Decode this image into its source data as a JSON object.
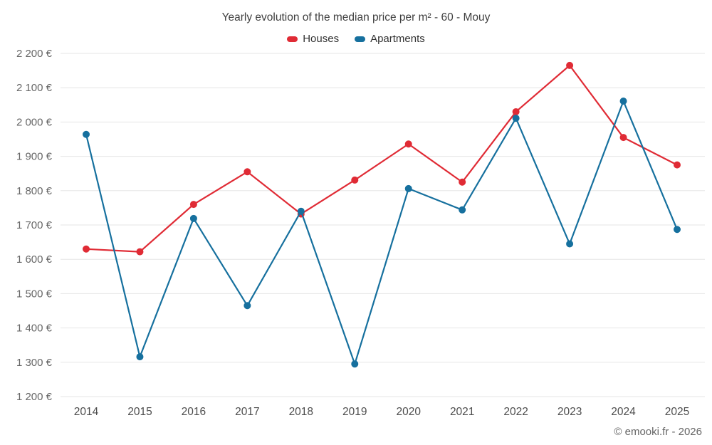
{
  "title": "Yearly evolution of the median price per m² - 60 - Mouy",
  "legend": {
    "houses": "Houses",
    "apartments": "Apartments"
  },
  "footer": "© emooki.fr - 2026",
  "colors": {
    "houses": "#e02b35",
    "apartments": "#16709e",
    "grid": "#e6e6e6",
    "axis_label": "#666666",
    "x_label": "#4d4d4d"
  },
  "chart_data": {
    "type": "line",
    "categories": [
      "2014",
      "2015",
      "2016",
      "2017",
      "2018",
      "2019",
      "2020",
      "2021",
      "2022",
      "2023",
      "2024",
      "2025"
    ],
    "series": [
      {
        "name": "Houses",
        "color": "#e02b35",
        "values": [
          1630,
          1622,
          1760,
          1855,
          1732,
          1831,
          1936,
          1825,
          2030,
          2165,
          1955,
          1875
        ]
      },
      {
        "name": "Apartments",
        "color": "#16709e",
        "values": [
          1964,
          1316,
          1719,
          1465,
          1740,
          1295,
          1806,
          1744,
          2011,
          1645,
          2061,
          1687
        ]
      }
    ],
    "title": "Yearly evolution of the median price per m² - 60 - Mouy",
    "xlabel": "",
    "ylabel": "",
    "ylim": [
      1200,
      2200
    ],
    "ytick_step": 100,
    "ytick_suffix": " €",
    "grid": true,
    "legend_position": "top"
  }
}
